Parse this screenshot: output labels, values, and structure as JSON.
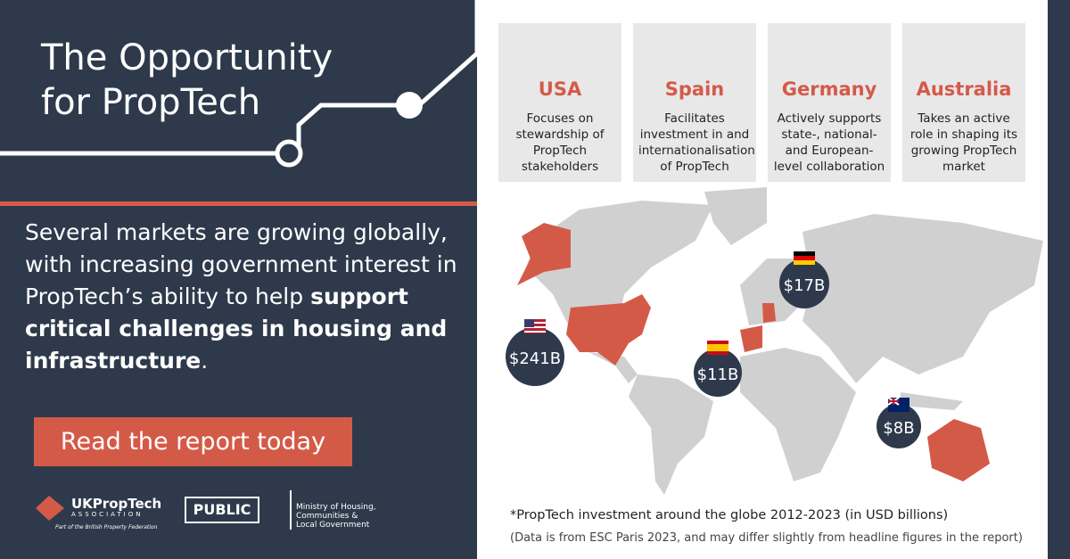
{
  "header": {
    "title": "The Opportunity for PropTech"
  },
  "intro": {
    "text": "Several markets are growing globally, with increasing government interest in PropTech’s ability to help",
    "bold": "support critical challenges in housing and infrastructure",
    "end": "."
  },
  "button": {
    "label": "Read the report today"
  },
  "logos": {
    "ukproptech": "UKPropTech",
    "association": "ASSOCIATION",
    "federation": "Part of the British Property Federation",
    "public": "PUBLIC",
    "ministry": [
      "Ministry of Housing,",
      "Communities &",
      "Local Government"
    ]
  },
  "countries": [
    {
      "name": "USA",
      "description": "Focuses on stewardship of PropTech stakeholders"
    },
    {
      "name": "Spain",
      "description": "Facilitates investment in and internationalisation of PropTech"
    },
    {
      "name": "Germany",
      "description": "Actively supports state-, national- and European-level collaboration"
    },
    {
      "name": "Australia",
      "description": "Takes an active role in shaping its growing PropTech market"
    }
  ],
  "map": {
    "markers": [
      {
        "label": "$241B"
      },
      {
        "label": "$11B"
      },
      {
        "label": "$17B"
      },
      {
        "label": "$8B"
      }
    ]
  },
  "footnote": {
    "title": "*PropTech investment around the globe 2012-2023 (in USD billions)",
    "note": "(Data is from ESC Paris 2023, and may differ slightly from headline figures in the report)"
  }
}
